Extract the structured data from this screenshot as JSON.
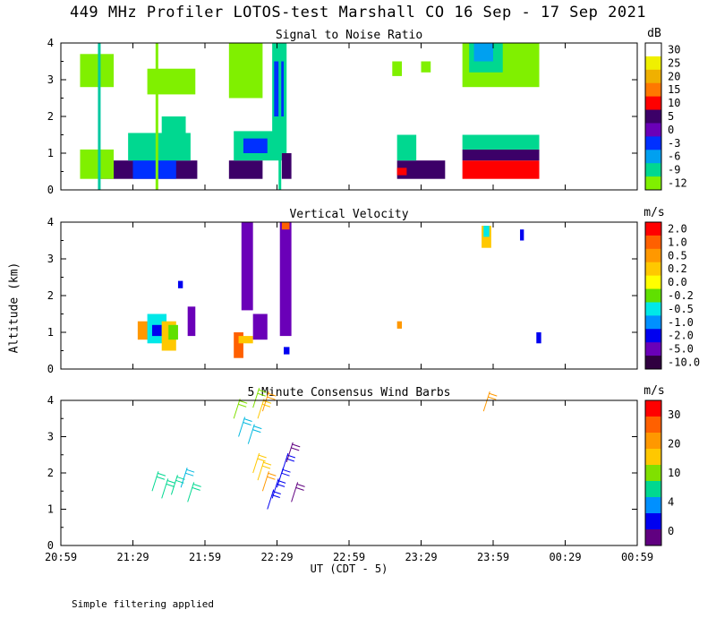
{
  "title": "449 MHz Profiler LOTOS-test Marshall CO 16 Sep - 17 Sep 2021",
  "ylabel": "Altitude (km)",
  "footnote": "Simple filtering applied",
  "chart_data": [
    {
      "type": "heatmap",
      "title": "Signal to Noise Ratio",
      "ylim": [
        0,
        4
      ],
      "yticks": [
        "0",
        "1",
        "2",
        "3",
        "4"
      ],
      "colorbar": {
        "unit": "dB",
        "labels": [
          "30",
          "25",
          "20",
          "15",
          "10",
          "5",
          "0",
          "-3",
          "-6",
          "-9",
          "-12"
        ],
        "colors": [
          "#ffffff",
          "#f0f000",
          "#f0b000",
          "#ff7800",
          "#ff0000",
          "#3c0068",
          "#6a00b8",
          "#0030ff",
          "#00a0f0",
          "#00d890",
          "#80f000"
        ]
      },
      "blocks": [
        {
          "t": [
            0.4,
            1.42
          ],
          "z": [
            0.3,
            0.8
          ],
          "c": "#3c0068"
        },
        {
          "t": [
            0.75,
            1.2
          ],
          "z": [
            0.3,
            0.9
          ],
          "c": "#0030ff"
        },
        {
          "t": [
            0.85,
            1.12
          ],
          "z": [
            0.85,
            1.4
          ],
          "c": "#00a0f0"
        },
        {
          "t": [
            0.7,
            1.35
          ],
          "z": [
            0.8,
            1.55
          ],
          "c": "#00d890"
        },
        {
          "t": [
            0.2,
            0.55
          ],
          "z": [
            0.3,
            1.1
          ],
          "c": "#80f000"
        },
        {
          "t": [
            1.05,
            1.3
          ],
          "z": [
            1.5,
            2.0
          ],
          "c": "#00d890"
        },
        {
          "t": [
            0.2,
            0.55
          ],
          "z": [
            2.8,
            3.7
          ],
          "c": "#80f000"
        },
        {
          "t": [
            0.9,
            1.4
          ],
          "z": [
            2.6,
            3.3
          ],
          "c": "#80f000"
        },
        {
          "t": [
            1.75,
            2.1
          ],
          "z": [
            0.3,
            0.8
          ],
          "c": "#3c0068"
        },
        {
          "t": [
            1.8,
            2.3
          ],
          "z": [
            0.8,
            1.6
          ],
          "c": "#00d890"
        },
        {
          "t": [
            1.9,
            2.15
          ],
          "z": [
            1.0,
            1.4
          ],
          "c": "#0030ff"
        },
        {
          "t": [
            1.85,
            2.0
          ],
          "z": [
            2.5,
            3.8
          ],
          "c": "#00d890"
        },
        {
          "t": [
            1.75,
            2.1
          ],
          "z": [
            2.5,
            4.0
          ],
          "c": "#80f000"
        },
        {
          "t": [
            2.2,
            2.35
          ],
          "z": [
            1.0,
            4.0
          ],
          "c": "#00d890"
        },
        {
          "t": [
            2.22,
            2.32
          ],
          "z": [
            2.0,
            3.5
          ],
          "c": "#0030ff"
        },
        {
          "t": [
            2.3,
            2.4
          ],
          "z": [
            0.3,
            1.0
          ],
          "c": "#3c0068"
        },
        {
          "t": [
            3.5,
            4.0
          ],
          "z": [
            0.3,
            0.8
          ],
          "c": "#3c0068"
        },
        {
          "t": [
            3.5,
            3.6
          ],
          "z": [
            0.4,
            0.6
          ],
          "c": "#ff0000"
        },
        {
          "t": [
            3.5,
            3.7
          ],
          "z": [
            0.8,
            1.5
          ],
          "c": "#00d890"
        },
        {
          "t": [
            4.18,
            4.98
          ],
          "z": [
            0.3,
            0.8
          ],
          "c": "#ff0000"
        },
        {
          "t": [
            4.18,
            4.98
          ],
          "z": [
            0.8,
            1.1
          ],
          "c": "#3c0068"
        },
        {
          "t": [
            4.18,
            4.98
          ],
          "z": [
            1.1,
            1.5
          ],
          "c": "#00d890"
        },
        {
          "t": [
            4.18,
            4.98
          ],
          "z": [
            2.8,
            4.0
          ],
          "c": "#80f000"
        },
        {
          "t": [
            4.25,
            4.6
          ],
          "z": [
            3.2,
            4.0
          ],
          "c": "#00d890"
        },
        {
          "t": [
            4.3,
            4.5
          ],
          "z": [
            3.5,
            4.0
          ],
          "c": "#00a0f0"
        },
        {
          "t": [
            3.45,
            3.55
          ],
          "z": [
            3.1,
            3.5
          ],
          "c": "#80f000"
        },
        {
          "t": [
            3.75,
            3.85
          ],
          "z": [
            3.2,
            3.5
          ],
          "c": "#80f000"
        }
      ],
      "vlines": [
        {
          "t": 0.4,
          "c": "#00c8a0"
        },
        {
          "t": 1.0,
          "c": "#80f000"
        },
        {
          "t": 2.28,
          "c": "#00d890"
        }
      ]
    },
    {
      "type": "heatmap",
      "title": "Vertical Velocity",
      "ylim": [
        0,
        4
      ],
      "yticks": [
        "0",
        "1",
        "2",
        "3",
        "4"
      ],
      "colorbar": {
        "unit": "m/s",
        "labels": [
          "2.0",
          "1.0",
          "0.5",
          "0.2",
          "0.0",
          "-0.2",
          "-0.5",
          "-1.0",
          "-2.0",
          "-5.0",
          "-10.0"
        ],
        "colors": [
          "#ff0000",
          "#ff6000",
          "#ff9800",
          "#ffc800",
          "#ffff00",
          "#60e000",
          "#00e8e8",
          "#0090ff",
          "#0000f0",
          "#6a00b8",
          "#300040"
        ]
      },
      "blocks": [
        {
          "t": [
            0.8,
            1.0
          ],
          "z": [
            0.8,
            1.3
          ],
          "c": "#ff9800"
        },
        {
          "t": [
            0.9,
            1.1
          ],
          "z": [
            0.7,
            1.5
          ],
          "c": "#00e8e8"
        },
        {
          "t": [
            0.95,
            1.05
          ],
          "z": [
            0.9,
            1.2
          ],
          "c": "#0000f0"
        },
        {
          "t": [
            1.05,
            1.2
          ],
          "z": [
            0.5,
            1.3
          ],
          "c": "#ffc800"
        },
        {
          "t": [
            1.12,
            1.22
          ],
          "z": [
            0.8,
            1.2
          ],
          "c": "#60e000"
        },
        {
          "t": [
            1.22,
            1.27
          ],
          "z": [
            2.2,
            2.4
          ],
          "c": "#0000f0"
        },
        {
          "t": [
            1.32,
            1.4
          ],
          "z": [
            0.9,
            1.7
          ],
          "c": "#6a00b8"
        },
        {
          "t": [
            1.8,
            1.9
          ],
          "z": [
            0.3,
            1.0
          ],
          "c": "#ff6000"
        },
        {
          "t": [
            1.85,
            2.0
          ],
          "z": [
            0.7,
            0.9
          ],
          "c": "#ffc800"
        },
        {
          "t": [
            1.88,
            2.0
          ],
          "z": [
            1.6,
            4.0
          ],
          "c": "#6a00b8"
        },
        {
          "t": [
            2.0,
            2.15
          ],
          "z": [
            0.8,
            1.5
          ],
          "c": "#6a00b8"
        },
        {
          "t": [
            2.28,
            2.4
          ],
          "z": [
            0.9,
            4.0
          ],
          "c": "#6a00b8"
        },
        {
          "t": [
            2.3,
            2.38
          ],
          "z": [
            3.8,
            4.0
          ],
          "c": "#ff6000"
        },
        {
          "t": [
            2.32,
            2.38
          ],
          "z": [
            0.4,
            0.6
          ],
          "c": "#0000f0"
        },
        {
          "t": [
            3.5,
            3.55
          ],
          "z": [
            1.1,
            1.3
          ],
          "c": "#ff9800"
        },
        {
          "t": [
            4.38,
            4.48
          ],
          "z": [
            3.3,
            3.9
          ],
          "c": "#ffc800"
        },
        {
          "t": [
            4.4,
            4.46
          ],
          "z": [
            3.6,
            3.9
          ],
          "c": "#00e8e8"
        },
        {
          "t": [
            4.78,
            4.82
          ],
          "z": [
            3.5,
            3.8
          ],
          "c": "#0000f0"
        },
        {
          "t": [
            4.95,
            5.0
          ],
          "z": [
            0.7,
            1.0
          ],
          "c": "#0000f0"
        }
      ]
    },
    {
      "type": "scatter",
      "title": "5 Minute Consensus Wind Barbs",
      "ylim": [
        0,
        4
      ],
      "yticks": [
        "0",
        "1",
        "2",
        "3",
        "4"
      ],
      "colorbar": {
        "unit": "m/s",
        "labels": [
          "30",
          "20",
          "10",
          "4",
          "0"
        ],
        "colors": [
          "#ff0000",
          "#ff6000",
          "#ff9800",
          "#ffc800",
          "#80e000",
          "#00d890",
          "#0090ff",
          "#0000f0",
          "#600080"
        ]
      },
      "barbs": [
        {
          "t": 0.95,
          "z": 1.5,
          "c": "#00d890"
        },
        {
          "t": 1.05,
          "z": 1.3,
          "c": "#00d890"
        },
        {
          "t": 1.15,
          "z": 1.4,
          "c": "#00d890"
        },
        {
          "t": 1.25,
          "z": 1.6,
          "c": "#00b8e0"
        },
        {
          "t": 1.32,
          "z": 1.2,
          "c": "#00d890"
        },
        {
          "t": 1.8,
          "z": 3.5,
          "c": "#80e000"
        },
        {
          "t": 1.85,
          "z": 3.0,
          "c": "#00b8e0"
        },
        {
          "t": 1.95,
          "z": 2.8,
          "c": "#00b8e0"
        },
        {
          "t": 2.0,
          "z": 3.8,
          "c": "#80e000"
        },
        {
          "t": 2.05,
          "z": 3.5,
          "c": "#ffc800"
        },
        {
          "t": 2.1,
          "z": 3.7,
          "c": "#ff9800"
        },
        {
          "t": 2.0,
          "z": 2.0,
          "c": "#ffc800"
        },
        {
          "t": 2.05,
          "z": 1.8,
          "c": "#ffc800"
        },
        {
          "t": 2.1,
          "z": 1.5,
          "c": "#ff9800"
        },
        {
          "t": 2.2,
          "z": 1.3,
          "c": "#0000f0"
        },
        {
          "t": 2.25,
          "z": 1.6,
          "c": "#0000f0"
        },
        {
          "t": 2.3,
          "z": 2.0,
          "c": "#0000f0"
        },
        {
          "t": 2.35,
          "z": 2.3,
          "c": "#600080"
        },
        {
          "t": 2.15,
          "z": 1.0,
          "c": "#0000f0"
        },
        {
          "t": 2.4,
          "z": 1.2,
          "c": "#600080"
        },
        {
          "t": 4.4,
          "z": 3.7,
          "c": "#ff9800"
        }
      ]
    }
  ],
  "xaxis": {
    "label": "UT  (CDT - 5)",
    "ticks": [
      "20:59",
      "21:29",
      "21:59",
      "22:29",
      "22:59",
      "23:29",
      "23:59",
      "00:29",
      "00:59"
    ]
  }
}
